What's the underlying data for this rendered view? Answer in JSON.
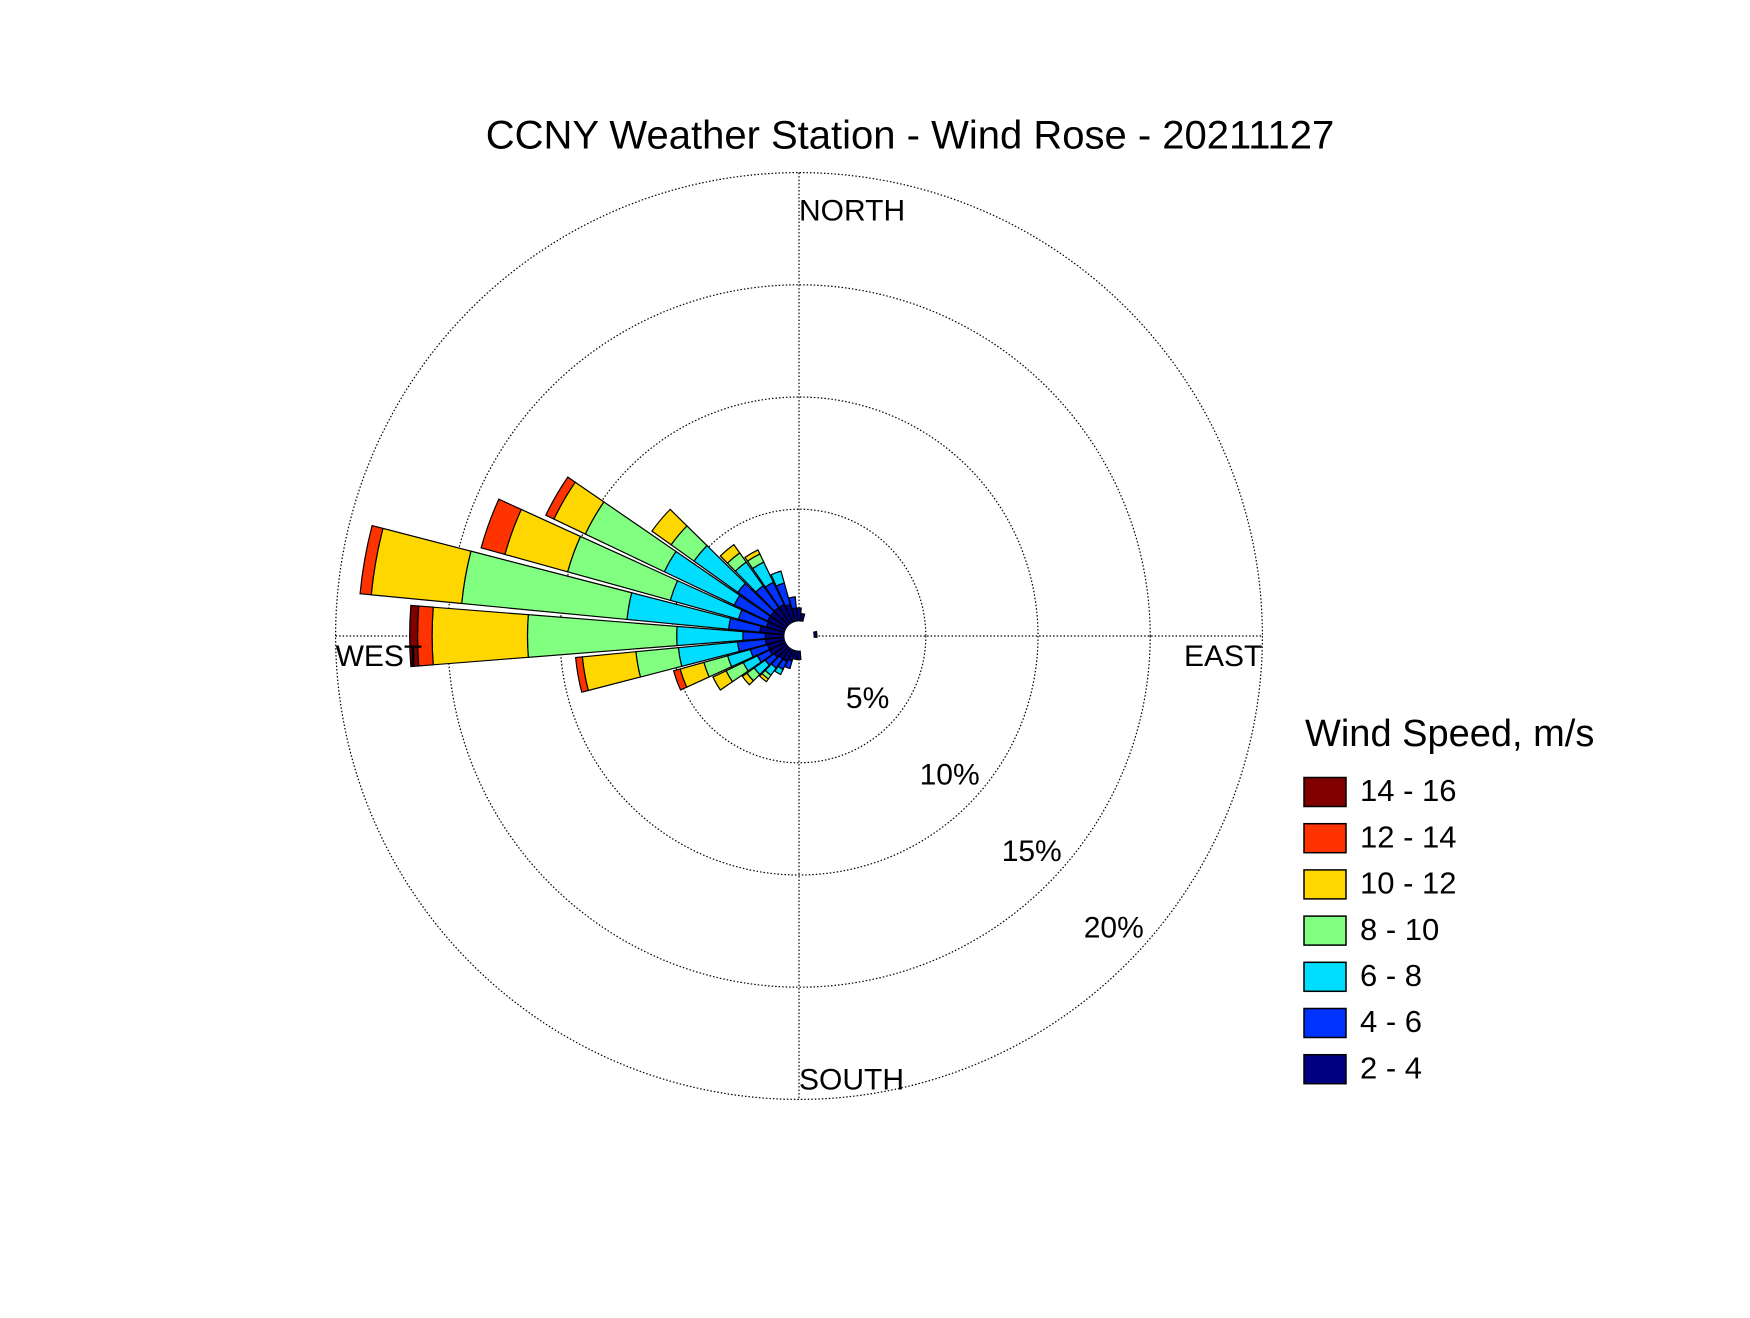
{
  "chart_data": {
    "type": "windrose",
    "title": "CCNY Weather Station - Wind Rose - 20211127",
    "x": [
      0,
      10,
      20,
      30,
      40,
      50,
      60,
      70,
      80,
      90,
      100,
      110,
      120,
      130,
      140,
      150,
      160,
      170,
      180,
      190,
      200,
      210,
      220,
      230,
      240,
      250,
      260,
      270,
      280,
      290,
      300,
      310,
      320,
      330,
      340,
      350
    ],
    "xlim": [
      0,
      360
    ],
    "rlim": [
      0,
      20
    ],
    "rticks": [
      {
        "value": 5,
        "label": "5%"
      },
      {
        "value": 10,
        "label": "10%"
      },
      {
        "value": 15,
        "label": "15%"
      },
      {
        "value": 20,
        "label": "20%"
      }
    ],
    "compass_labels": [
      {
        "value": 0,
        "label": "NORTH"
      },
      {
        "value": 90,
        "label": "EAST"
      },
      {
        "value": 180,
        "label": "SOUTH"
      },
      {
        "value": 270,
        "label": "WEST"
      }
    ],
    "legend_title": "Wind Speed, m/s",
    "series": [
      {
        "name": "2 - 4",
        "color": "#000080",
        "values": [
          0.6,
          0.35,
          0,
          0,
          0,
          0,
          0,
          0,
          0.15,
          0.15,
          0,
          0,
          0,
          0,
          0,
          0,
          0,
          0,
          0.4,
          0.4,
          0.5,
          0.6,
          0.6,
          0.7,
          0.8,
          0.8,
          0.85,
          0.85,
          1.1,
          0.85,
          0.9,
          0.9,
          0.9,
          0.9,
          0.8,
          0.6
        ]
      },
      {
        "name": "4 - 6",
        "color": "#0033ff",
        "values": [
          0,
          0,
          0,
          0,
          0,
          0,
          0,
          0,
          0,
          0,
          0,
          0,
          0,
          0,
          0,
          0,
          0,
          0,
          0,
          0,
          0.35,
          0.4,
          0.5,
          0.5,
          0.6,
          0.8,
          1.25,
          1.0,
          1.4,
          1.3,
          1.65,
          1.8,
          1.2,
          1.1,
          1.0,
          0.5
        ]
      },
      {
        "name": "6 - 8",
        "color": "#00ddff",
        "values": [
          0,
          0,
          0,
          0,
          0,
          0,
          0,
          0,
          0,
          0,
          0,
          0,
          0,
          0,
          0,
          0,
          0,
          0,
          0,
          0,
          0,
          0.25,
          0.4,
          0.6,
          0.7,
          1.05,
          2.65,
          2.95,
          4.55,
          3.15,
          3.45,
          2.4,
          1.3,
          1.0,
          0.55,
          0
        ]
      },
      {
        "name": "8 - 10",
        "color": "#80ff80",
        "values": [
          0,
          0,
          0,
          0,
          0,
          0,
          0,
          0,
          0,
          0,
          0,
          0,
          0,
          0,
          0,
          0,
          0,
          0,
          0,
          0,
          0,
          0,
          0.2,
          0.4,
          0.85,
          1.1,
          1.9,
          6.65,
          7.4,
          4.75,
          3.9,
          1.25,
          0.5,
          0.4,
          0,
          0
        ]
      },
      {
        "name": "10 - 12",
        "color": "#ffd700",
        "values": [
          0,
          0,
          0,
          0,
          0,
          0,
          0,
          0,
          0,
          0,
          0,
          0,
          0,
          0,
          0,
          0,
          0,
          0,
          0,
          0,
          0,
          0,
          0.15,
          0.25,
          0.65,
          1.1,
          2.4,
          4.25,
          4.05,
          2.9,
          1.55,
          1.05,
          0.45,
          0.2,
          0,
          0
        ]
      },
      {
        "name": "12 - 14",
        "color": "#ff3300",
        "values": [
          0,
          0,
          0,
          0,
          0,
          0,
          0,
          0,
          0,
          0,
          0,
          0,
          0,
          0,
          0,
          0,
          0,
          0,
          0,
          0,
          0,
          0,
          0,
          0,
          0,
          0.3,
          0.3,
          0.65,
          0.5,
          1.1,
          0.4,
          0,
          0,
          0,
          0,
          0
        ]
      },
      {
        "name": "14 - 16",
        "color": "#800000",
        "values": [
          0,
          0,
          0,
          0,
          0,
          0,
          0,
          0,
          0,
          0,
          0,
          0,
          0,
          0,
          0,
          0,
          0,
          0,
          0,
          0,
          0,
          0,
          0,
          0,
          0,
          0,
          0,
          0.35,
          0,
          0,
          0,
          0,
          0,
          0,
          0,
          0
        ]
      }
    ]
  }
}
